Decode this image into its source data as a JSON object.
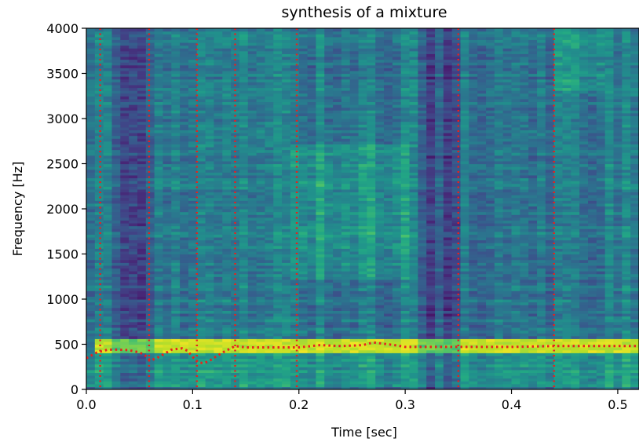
{
  "chart_data": {
    "type": "heatmap",
    "title": "synthesis of a mixture",
    "xlabel": "Time [sec]",
    "ylabel": "Frequency [Hz]",
    "xlim": [
      0.0,
      0.52
    ],
    "ylim": [
      0,
      4000
    ],
    "x_ticks": [
      "0.0",
      "0.1",
      "0.2",
      "0.3",
      "0.4",
      "0.5"
    ],
    "y_ticks": [
      "0",
      "500",
      "1000",
      "1500",
      "2000",
      "2500",
      "3000",
      "3500",
      "4000"
    ],
    "colormap": "viridis",
    "grid": false,
    "spectrogram": {
      "time_resolution_sec": 0.008,
      "frequency_resolution_hz": 31.25,
      "dominant_band_hz": [
        380,
        560
      ],
      "bright_regions": [
        {
          "t": [
            0.19,
            0.3
          ],
          "f": [
            1200,
            2700
          ]
        },
        {
          "t": [
            0.44,
            0.48
          ],
          "f": [
            3300,
            4000
          ]
        }
      ],
      "dark_regions": [
        {
          "t": [
            0.31,
            0.35
          ],
          "f": [
            0,
            4000
          ]
        },
        {
          "t": [
            0.02,
            0.06
          ],
          "f": [
            0,
            4000
          ]
        }
      ]
    },
    "overlays": {
      "color": "#e8201e",
      "style": "dotted",
      "onset_markers_sec": [
        0.013,
        0.059,
        0.104,
        0.14,
        0.198,
        0.35,
        0.44
      ],
      "f0_track": {
        "t": [
          0.0,
          0.01,
          0.02,
          0.03,
          0.04,
          0.05,
          0.055,
          0.06,
          0.065,
          0.07,
          0.08,
          0.09,
          0.095,
          0.1,
          0.105,
          0.11,
          0.115,
          0.12,
          0.13,
          0.14,
          0.15,
          0.16,
          0.18,
          0.2,
          0.22,
          0.24,
          0.26,
          0.27,
          0.28,
          0.29,
          0.3,
          0.32,
          0.35,
          0.38,
          0.4,
          0.44,
          0.48,
          0.52
        ],
        "f": [
          345,
          410,
          440,
          440,
          435,
          410,
          380,
          320,
          340,
          370,
          440,
          455,
          430,
          360,
          300,
          290,
          310,
          350,
          420,
          480,
          465,
          465,
          465,
          465,
          490,
          480,
          490,
          520,
          505,
          490,
          470,
          470,
          470,
          470,
          470,
          480,
          480,
          480
        ]
      }
    }
  }
}
